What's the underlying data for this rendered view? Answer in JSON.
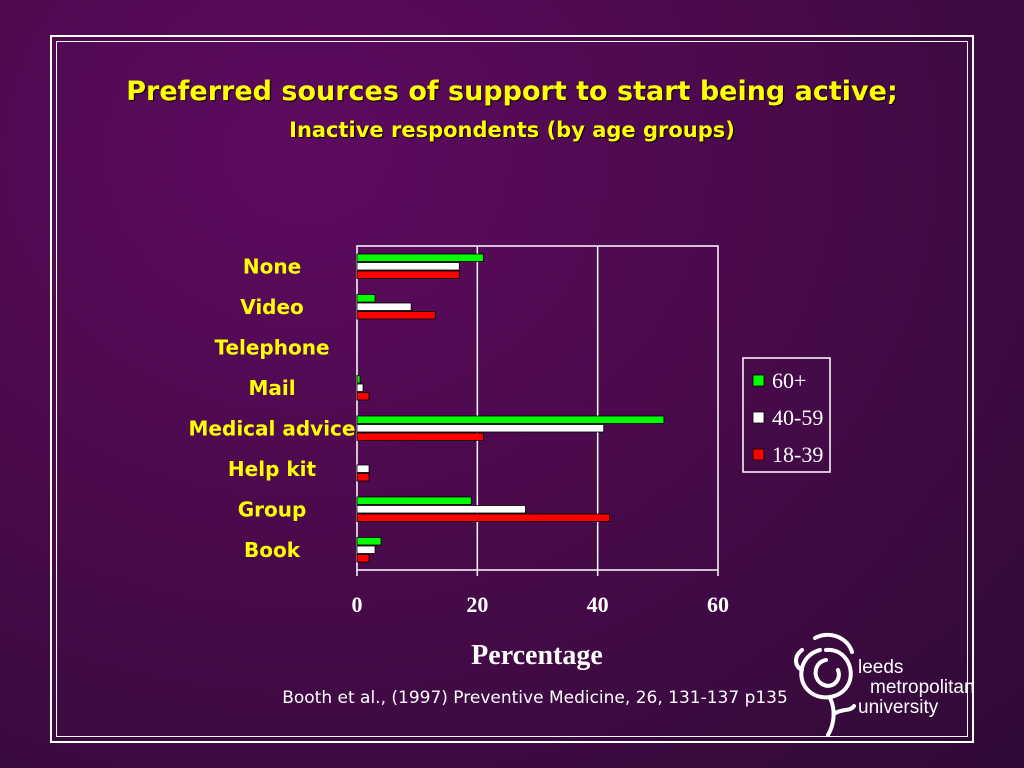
{
  "slide": {
    "title": "Preferred sources of support to start being active;",
    "subtitle": "Inactive respondents  (by age groups)",
    "citation": "Booth et al., (1997) Preventive Medicine, 26, 131-137  p135"
  },
  "logo": {
    "line1": "leeds",
    "line2": "metropolitan",
    "line3": "university",
    "icon": "rose-icon"
  },
  "chart_data": {
    "type": "bar",
    "orientation": "horizontal",
    "title": "Preferred sources of support to start being active;",
    "subtitle": "Inactive respondents  (by age groups)",
    "xlabel": "Percentage",
    "ylabel": "",
    "xlim": [
      0,
      60
    ],
    "xticks": [
      0,
      20,
      40,
      60
    ],
    "grid": "vertical",
    "legend_position": "right",
    "categories": [
      "None",
      "Video",
      "Telephone",
      "Mail",
      "Medical advice",
      "Help kit",
      "Group",
      "Book"
    ],
    "series": [
      {
        "name": "60+",
        "color": "#00ff00",
        "values": [
          21,
          3,
          0,
          0.5,
          51,
          0,
          19,
          4
        ]
      },
      {
        "name": "40-59",
        "color": "#ffffff",
        "values": [
          17,
          9,
          0,
          1,
          41,
          2,
          28,
          3
        ]
      },
      {
        "name": "18-39",
        "color": "#ff0000",
        "values": [
          17,
          13,
          0,
          2,
          21,
          2,
          42,
          2
        ]
      }
    ]
  }
}
